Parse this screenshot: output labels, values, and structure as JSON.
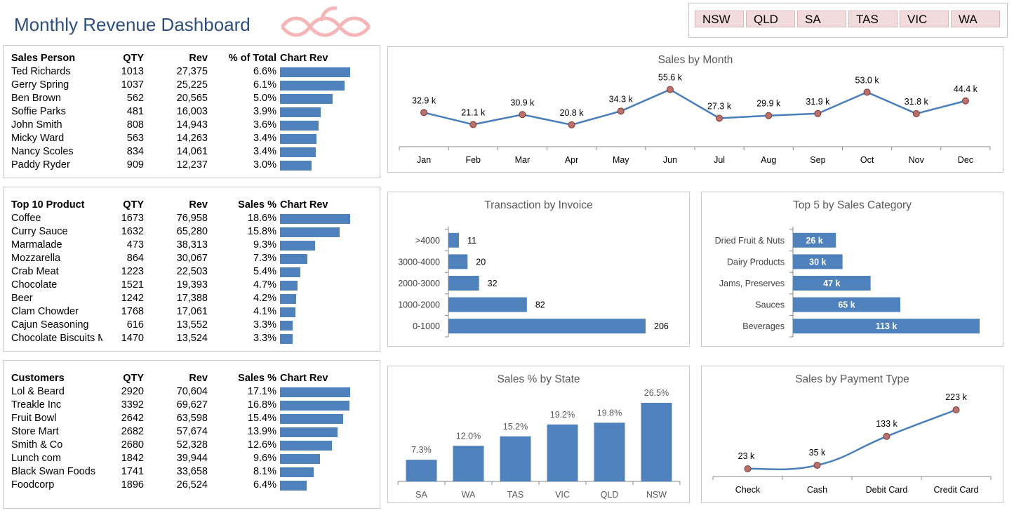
{
  "header": {
    "title": "Monthly Revenue Dashboard"
  },
  "slicer": {
    "states": [
      "NSW",
      "QLD",
      "SA",
      "TAS",
      "VIC",
      "WA"
    ]
  },
  "colors": {
    "bar": "#4f81bd",
    "line": "#4a7ebb",
    "marker": "#c0504d",
    "title": "#2e4f7c",
    "slicer": "#f2dcdb"
  },
  "sales_person": {
    "headers": [
      "Sales Person",
      "QTY",
      "Rev",
      "% of Total",
      "Chart Rev"
    ],
    "rows": [
      {
        "name": "Ted Richards",
        "qty": "1013",
        "rev": "27,375",
        "pct": "6.6%",
        "value": 27375
      },
      {
        "name": "Gerry Spring",
        "qty": "1037",
        "rev": "25,225",
        "pct": "6.1%",
        "value": 25225
      },
      {
        "name": "Ben Brown",
        "qty": "562",
        "rev": "20,565",
        "pct": "5.0%",
        "value": 20565
      },
      {
        "name": "Soffie Parks",
        "qty": "481",
        "rev": "16,003",
        "pct": "3.9%",
        "value": 16003
      },
      {
        "name": "John Smith",
        "qty": "808",
        "rev": "14,943",
        "pct": "3.6%",
        "value": 14943
      },
      {
        "name": "Micky Ward",
        "qty": "563",
        "rev": "14,263",
        "pct": "3.4%",
        "value": 14263
      },
      {
        "name": "Nancy Scoles",
        "qty": "834",
        "rev": "14,061",
        "pct": "3.4%",
        "value": 14061
      },
      {
        "name": "Paddy Ryder",
        "qty": "909",
        "rev": "12,237",
        "pct": "3.0%",
        "value": 12237
      }
    ]
  },
  "products": {
    "headers": [
      "Top 10 Product",
      "QTY",
      "Rev",
      "Sales %",
      "Chart Rev"
    ],
    "rows": [
      {
        "name": "Coffee",
        "qty": "1673",
        "rev": "76,958",
        "pct": "18.6%",
        "value": 76958
      },
      {
        "name": "Curry Sauce",
        "qty": "1632",
        "rev": "65,280",
        "pct": "15.8%",
        "value": 65280
      },
      {
        "name": "Marmalade",
        "qty": "473",
        "rev": "38,313",
        "pct": "9.3%",
        "value": 38313
      },
      {
        "name": "Mozzarella",
        "qty": "864",
        "rev": "30,067",
        "pct": "7.3%",
        "value": 30067
      },
      {
        "name": "Crab Meat",
        "qty": "1223",
        "rev": "22,503",
        "pct": "5.4%",
        "value": 22503
      },
      {
        "name": "Chocolate",
        "qty": "1521",
        "rev": "19,393",
        "pct": "4.7%",
        "value": 19393
      },
      {
        "name": "Beer",
        "qty": "1242",
        "rev": "17,388",
        "pct": "4.2%",
        "value": 17388
      },
      {
        "name": "Clam Chowder",
        "qty": "1768",
        "rev": "17,061",
        "pct": "4.1%",
        "value": 17061
      },
      {
        "name": "Cajun Seasoning",
        "qty": "616",
        "rev": "13,552",
        "pct": "3.3%",
        "value": 13552
      },
      {
        "name": "Chocolate Biscuits M",
        "qty": "1470",
        "rev": "13,524",
        "pct": "3.3%",
        "value": 13524
      }
    ]
  },
  "customers": {
    "headers": [
      "Customers",
      "QTY",
      "Rev",
      "Sales %",
      "Chart Rev"
    ],
    "rows": [
      {
        "name": "Lol & Beard",
        "qty": "2920",
        "rev": "70,604",
        "pct": "17.1%",
        "value": 70604
      },
      {
        "name": "Treakle Inc",
        "qty": "3392",
        "rev": "69,627",
        "pct": "16.8%",
        "value": 69627
      },
      {
        "name": "Fruit Bowl",
        "qty": "2642",
        "rev": "63,598",
        "pct": "15.4%",
        "value": 63598
      },
      {
        "name": "Store Mart",
        "qty": "2682",
        "rev": "57,674",
        "pct": "13.9%",
        "value": 57674
      },
      {
        "name": "Smith & Co",
        "qty": "2680",
        "rev": "52,328",
        "pct": "12.6%",
        "value": 52328
      },
      {
        "name": "Lunch com",
        "qty": "1842",
        "rev": "39,944",
        "pct": "9.6%",
        "value": 39944
      },
      {
        "name": "Black Swan Foods",
        "qty": "1741",
        "rev": "33,658",
        "pct": "8.1%",
        "value": 33658
      },
      {
        "name": "Foodcorp",
        "qty": "1896",
        "rev": "26,524",
        "pct": "6.4%",
        "value": 26524
      }
    ]
  },
  "chart_data": [
    {
      "id": "sales_by_month",
      "type": "line",
      "title": "Sales by Month",
      "categories": [
        "Jan",
        "Feb",
        "Mar",
        "Apr",
        "May",
        "Jun",
        "Jul",
        "Aug",
        "Sep",
        "Oct",
        "Nov",
        "Dec"
      ],
      "values": [
        32.9,
        21.1,
        30.9,
        20.8,
        34.3,
        55.6,
        27.3,
        29.9,
        31.9,
        53.0,
        31.8,
        44.4
      ],
      "labels": [
        "32.9 k",
        "21.1 k",
        "30.9 k",
        "20.8 k",
        "34.3 k",
        "55.6 k",
        "27.3 k",
        "29.9 k",
        "31.9 k",
        "53.0 k",
        "31.8 k",
        "44.4 k"
      ],
      "unit": "k"
    },
    {
      "id": "transaction_by_invoice",
      "type": "bar",
      "orientation": "horizontal",
      "title": "Transaction by Invoice",
      "categories": [
        ">4000",
        "3000-4000",
        "2000-3000",
        "1000-2000",
        "0-1000"
      ],
      "values": [
        11,
        20,
        32,
        82,
        206
      ],
      "labels": [
        "11",
        "20",
        "32",
        "82",
        "206"
      ]
    },
    {
      "id": "top5_sales_category",
      "type": "bar",
      "orientation": "horizontal",
      "title": "Top 5 by Sales Category",
      "categories": [
        "Dried Fruit & Nuts",
        "Dairy Products",
        "Jams, Preserves",
        "Sauces",
        "Beverages"
      ],
      "values": [
        26,
        30,
        47,
        65,
        113
      ],
      "labels": [
        "26 k",
        "30 k",
        "47 k",
        "65 k",
        "113 k"
      ]
    },
    {
      "id": "sales_pct_by_state",
      "type": "bar",
      "title": "Sales % by State",
      "categories": [
        "SA",
        "WA",
        "TAS",
        "VIC",
        "QLD",
        "NSW"
      ],
      "values": [
        7.3,
        12.0,
        15.2,
        19.2,
        19.8,
        26.5
      ],
      "labels": [
        "7.3%",
        "12.0%",
        "15.2%",
        "19.2%",
        "19.8%",
        "26.5%"
      ]
    },
    {
      "id": "sales_by_payment_type",
      "type": "line",
      "title": "Sales by Payment Type",
      "categories": [
        "Check",
        "Cash",
        "Debit Card",
        "Credit Card"
      ],
      "values": [
        23,
        35,
        133,
        223
      ],
      "labels": [
        "23 k",
        "35 k",
        "133 k",
        "223 k"
      ]
    }
  ]
}
